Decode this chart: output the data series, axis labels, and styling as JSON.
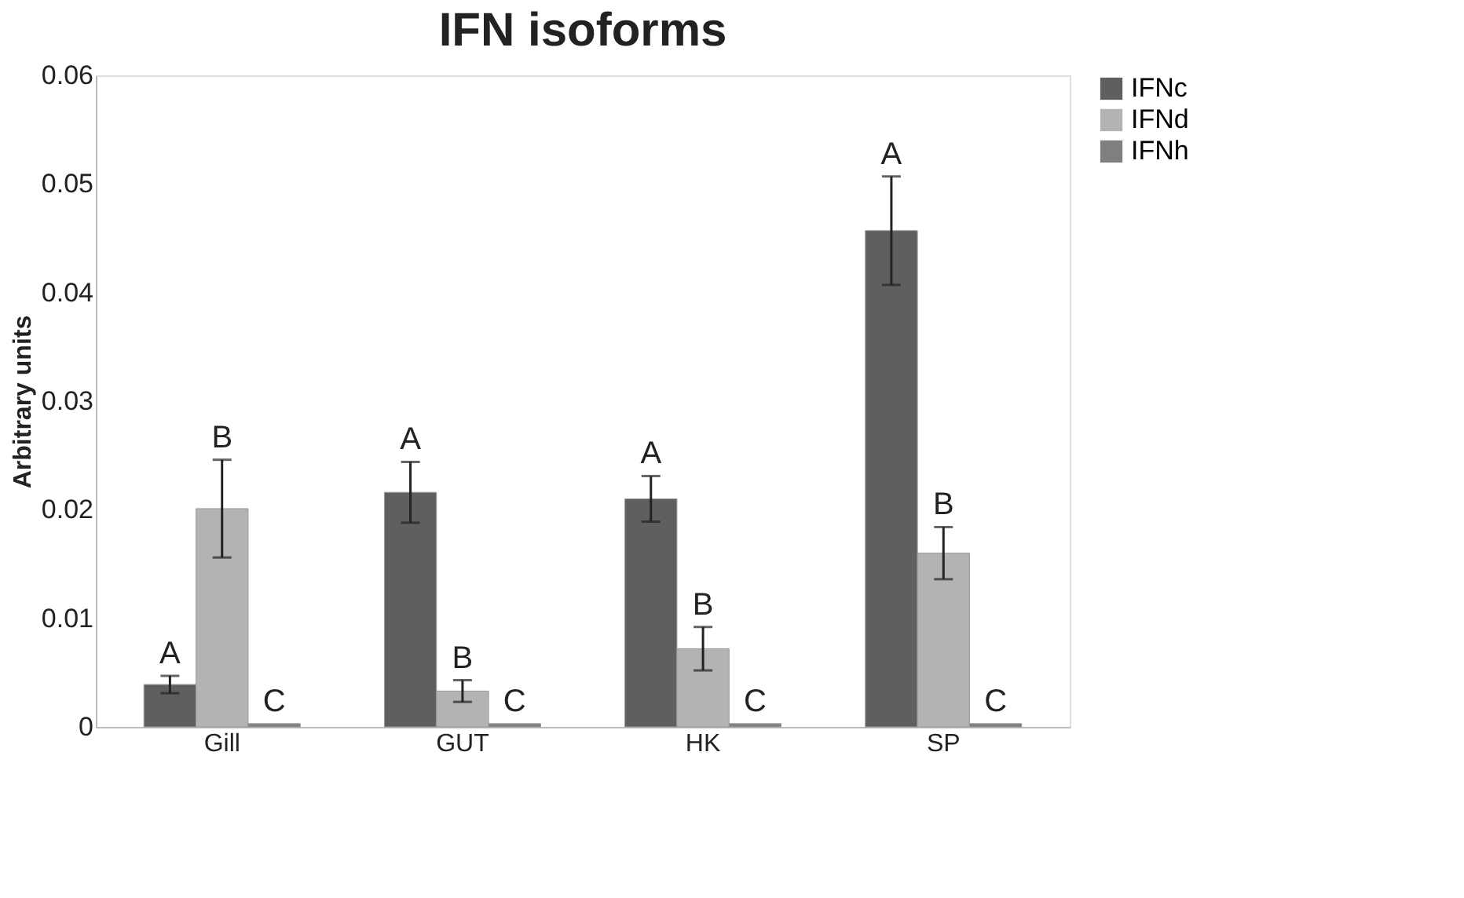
{
  "chart_data": {
    "type": "bar",
    "title": "IFN isoforms",
    "ylabel": "Arbitrary  units",
    "categories": [
      "Gill",
      "GUT",
      "HK",
      "SP"
    ],
    "series": [
      {
        "name": "IFNc",
        "color": "#5f5f5f",
        "values": [
          0.0039,
          0.0216,
          0.021,
          0.0457
        ],
        "errors": [
          0.0008,
          0.0028,
          0.0021,
          0.005
        ],
        "value_labels": [
          "A",
          "A",
          "A",
          "A"
        ]
      },
      {
        "name": "IFNd",
        "color": "#b3b3b3",
        "values": [
          0.0201,
          0.0033,
          0.0072,
          0.016
        ],
        "errors": [
          0.0045,
          0.001,
          0.002,
          0.0024
        ],
        "value_labels": [
          "B",
          "B",
          "B",
          "B"
        ]
      },
      {
        "name": "IFNh",
        "color": "#808080",
        "values": [
          0.0003,
          0.0003,
          0.0003,
          0.0003
        ],
        "errors": [
          null,
          null,
          null,
          null
        ],
        "value_labels": [
          "C",
          "C",
          "C",
          "C"
        ]
      }
    ],
    "ylim": [
      0,
      0.06
    ],
    "yticks": [
      0,
      0.01,
      0.02,
      0.03,
      0.04,
      0.05,
      0.06
    ],
    "grid": false,
    "legend": "right"
  }
}
